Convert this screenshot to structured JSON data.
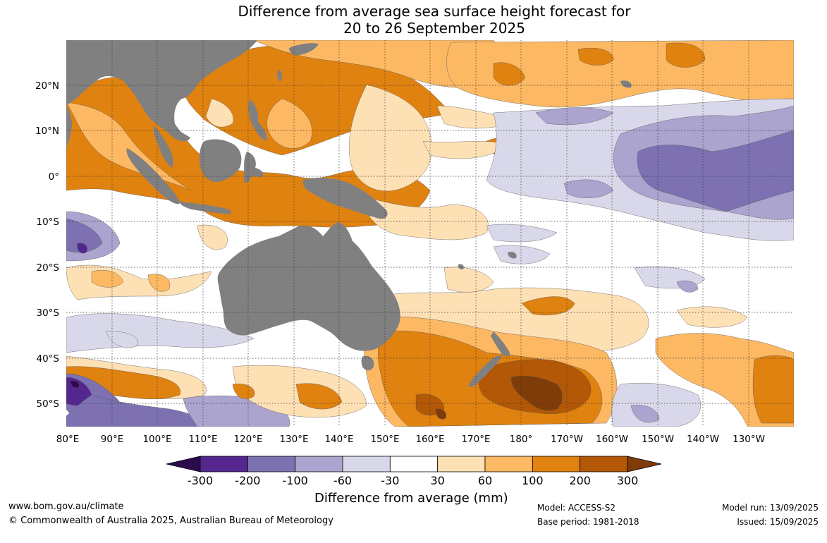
{
  "title_line1": "Difference from average sea surface height forecast for",
  "title_line2": "20 to 26 September 2025",
  "map": {
    "lat_labels": [
      "20°N",
      "10°N",
      "0°",
      "10°S",
      "20°S",
      "30°S",
      "40°S",
      "50°S"
    ],
    "lon_labels": [
      "80°E",
      "90°E",
      "100°E",
      "110°E",
      "120°E",
      "130°E",
      "140°E",
      "150°E",
      "160°E",
      "170°E",
      "180°",
      "170°W",
      "160°W",
      "150°W",
      "140°W",
      "130°W"
    ],
    "colors": {
      "land": "#808080",
      "neg300": "#2d0a4e",
      "neg200": "#54278f",
      "neg100": "#7d71b2",
      "neg60": "#aba4cf",
      "neg30": "#d8d8ea",
      "neutral": "#ffffff",
      "pos30": "#fee0b5",
      "pos60": "#fdb863",
      "pos100": "#e0820f",
      "pos200": "#b35806",
      "pos300": "#7f3b08"
    }
  },
  "legend": {
    "ticks": [
      "-300",
      "-200",
      "-100",
      "-60",
      "-30",
      "30",
      "60",
      "100",
      "200",
      "300"
    ],
    "colors": [
      "#54278f",
      "#7d71b2",
      "#aba4cf",
      "#d8d8ea",
      "#ffffff",
      "#fee0b5",
      "#fdb863",
      "#e0820f",
      "#b35806"
    ],
    "low_color": "#2d0a4e",
    "high_color": "#7f3b08",
    "unit_label": "Difference from average (mm)"
  },
  "footer": {
    "website": "www.bom.gov.au/climate",
    "copyright": "© Commonwealth of Australia 2025, Australian Bureau of Meteorology",
    "model": "Model: ACCESS-S2",
    "base_period": "Base period: 1981-2018",
    "model_run": "Model run: 13/09/2025",
    "issued": "Issued: 15/09/2025"
  }
}
